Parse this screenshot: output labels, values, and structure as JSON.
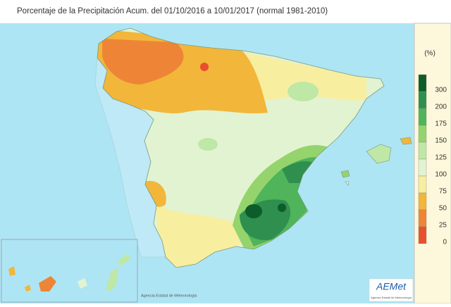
{
  "header": {
    "title": "Porcentaje de la Precipitación Acum. del 01/10/2016 a  10/01/2017  (normal 1981-2010)"
  },
  "legend": {
    "unit": "(%)",
    "classes": [
      {
        "label": 300,
        "color": "#0d5c2b"
      },
      {
        "label": 200,
        "color": "#2f8f4e"
      },
      {
        "label": 175,
        "color": "#4fb45a"
      },
      {
        "label": 150,
        "color": "#95d46c"
      },
      {
        "label": 125,
        "color": "#bfe7a6"
      },
      {
        "label": 100,
        "color": "#e2f3d2"
      },
      {
        "label": 75,
        "color": "#f7eea0"
      },
      {
        "label": 50,
        "color": "#f2b63b"
      },
      {
        "label": 25,
        "color": "#ee8536"
      },
      {
        "label": 0,
        "color": "#e8502d"
      }
    ]
  },
  "credit": "Agencia Estatal de Meteorología",
  "logo": {
    "name": "AEMet",
    "subtitle": "Agencia Estatal de Meteorología"
  }
}
